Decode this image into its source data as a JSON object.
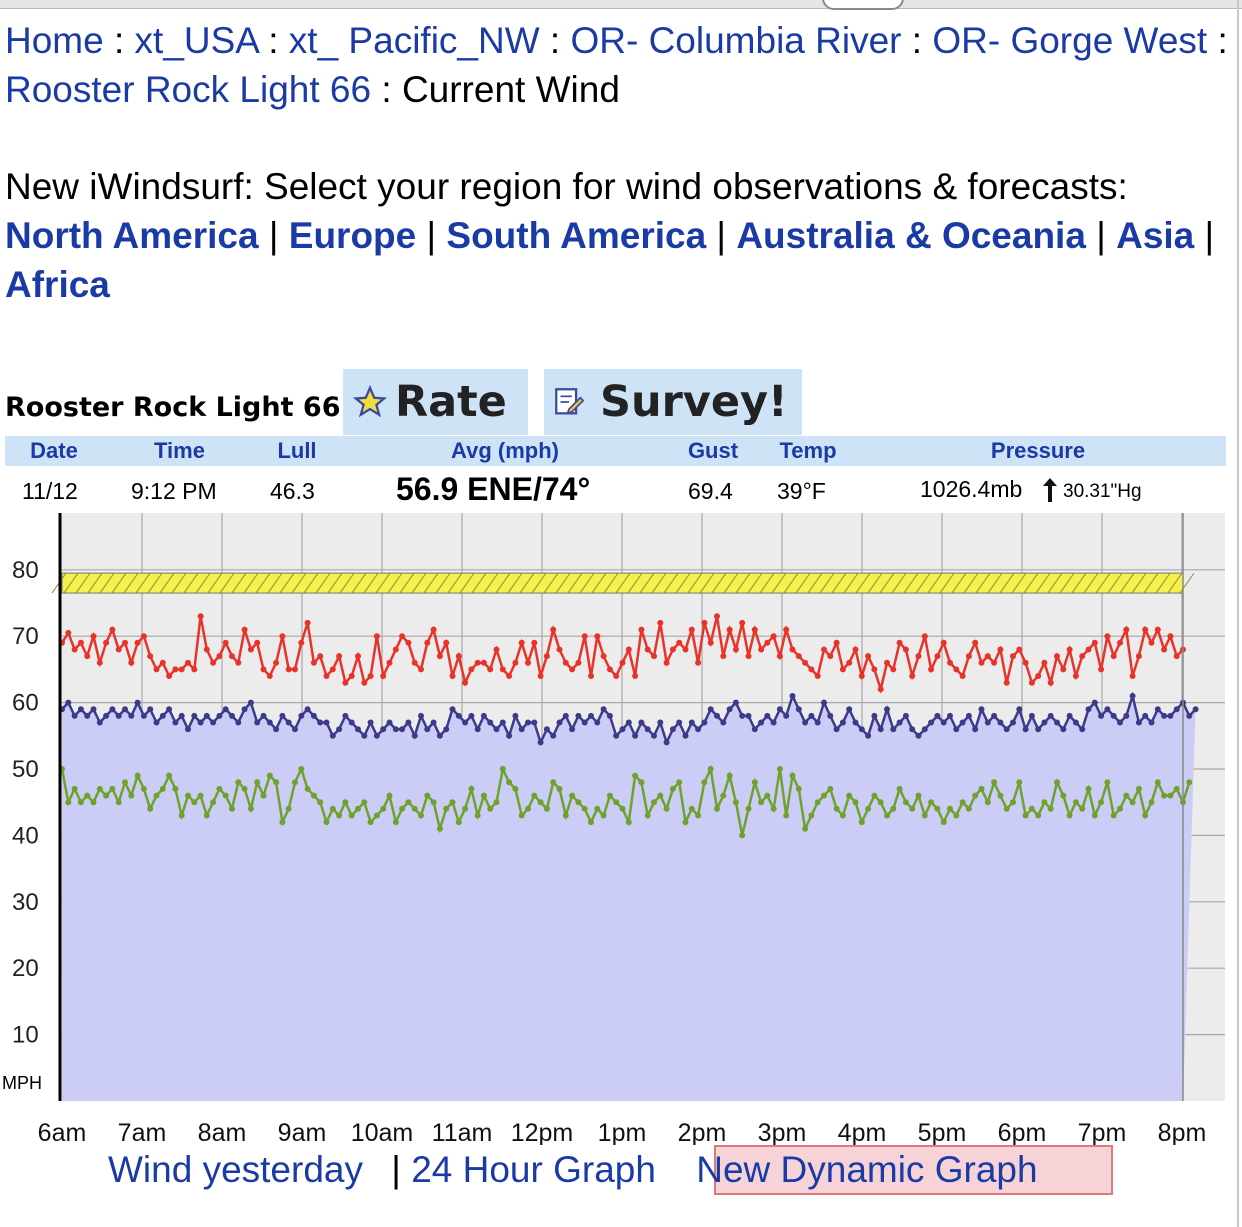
{
  "breadcrumb": {
    "items": [
      "Home",
      "xt_USA",
      "xt_ Pacific_NW",
      "OR- Columbia River",
      "OR- Gorge West",
      "Rooster Rock Light 66"
    ],
    "current": "Current Wind",
    "separator": ":"
  },
  "intro": {
    "text": "New iWindsurf: Select your region for wind observations & forecasts:",
    "regions": [
      "North America",
      "Europe",
      "South America",
      "Australia & Oceania",
      "Asia",
      "Africa"
    ]
  },
  "station": {
    "name": "Rooster Rock Light 66",
    "rate_label": "Rate",
    "survey_label": "Survey!"
  },
  "table": {
    "headers": {
      "date": "Date",
      "time": "Time",
      "lull": "Lull",
      "avg": "Avg (mph)",
      "gust": "Gust",
      "temp": "Temp",
      "pressure": "Pressure"
    },
    "row": {
      "date": "11/12",
      "time": "9:12 PM",
      "lull": "46.3",
      "avg": "56.9 ENE/74°",
      "gust": "69.4",
      "temp": "39°F",
      "pressure_mb": "1026.4mb",
      "pressure_hg": "30.31\"Hg"
    }
  },
  "chart_data": {
    "type": "line",
    "xlabel": "",
    "ylabel": "MPH",
    "x_ticks": [
      "6am",
      "7am",
      "8am",
      "9am",
      "10am",
      "11am",
      "12pm",
      "1pm",
      "2pm",
      "3pm",
      "4pm",
      "5pm",
      "6pm",
      "7pm",
      "8pm"
    ],
    "y_ticks": [
      10,
      20,
      30,
      40,
      50,
      60,
      70,
      80
    ],
    "ylim": [
      0,
      88
    ],
    "x_range_hours": [
      6,
      20
    ],
    "colors": {
      "gust": "#e8332a",
      "avg": "#3b3b8a",
      "lull": "#6fa22c",
      "fill": "#cccdf7",
      "direction_band": "#f5f04a"
    },
    "direction_band": {
      "y_low": 76.5,
      "y_high": 79.5,
      "direction": "ENE"
    },
    "series": [
      {
        "name": "Gust",
        "values": [
          69,
          70.5,
          68,
          69,
          67,
          70,
          66,
          69,
          71,
          68,
          69,
          66,
          69,
          70,
          67,
          65,
          66,
          64,
          65,
          65,
          66,
          65,
          73,
          68,
          66,
          67,
          69,
          67,
          66,
          71,
          68,
          69,
          65,
          64,
          66,
          70,
          65,
          65,
          69,
          72,
          66,
          67,
          64,
          65,
          67,
          63,
          64,
          67,
          63,
          64,
          70,
          64,
          66,
          68,
          70,
          69,
          66,
          65,
          69,
          71,
          67,
          69,
          64,
          67,
          63,
          65,
          66,
          66,
          65,
          68,
          65,
          64,
          66,
          69,
          66,
          69,
          64,
          67,
          71,
          68,
          66,
          65,
          66,
          70,
          64,
          70,
          67,
          65,
          64,
          66,
          68,
          64,
          71,
          68,
          67,
          72,
          66,
          68,
          69,
          68,
          71,
          66,
          72,
          69,
          73,
          67,
          71,
          68,
          72,
          67,
          71,
          68,
          69,
          70,
          67,
          71,
          68,
          67,
          66,
          65,
          64,
          68,
          67,
          69,
          65,
          66,
          68,
          64,
          67,
          65,
          62,
          66,
          65,
          69,
          68,
          64,
          67,
          70,
          65,
          67,
          69,
          66,
          65,
          64,
          67,
          69,
          66,
          67,
          66,
          68,
          63,
          67,
          68,
          66,
          63,
          64,
          66,
          63,
          67,
          65,
          68,
          64,
          67,
          68,
          69,
          65,
          70,
          67,
          69,
          71,
          64,
          67,
          71,
          69,
          71,
          68,
          70,
          67,
          68
        ]
      },
      {
        "name": "Avg",
        "values": [
          59,
          60,
          58,
          59,
          58,
          59,
          57,
          58,
          59,
          58,
          59,
          58,
          60,
          58,
          59,
          57,
          58,
          59,
          57,
          58,
          56,
          58,
          57,
          58,
          57,
          58,
          59,
          58,
          57,
          59,
          60,
          57,
          58,
          57,
          56,
          58,
          57,
          56,
          58,
          59,
          58,
          57,
          57,
          55,
          56,
          58,
          57,
          56,
          55,
          57,
          55,
          56,
          57,
          56,
          56,
          57,
          55,
          58,
          56,
          57,
          55,
          56,
          59,
          58,
          57,
          58,
          56,
          58,
          57,
          56,
          57,
          55,
          58,
          56,
          57,
          57,
          54,
          56,
          55,
          57,
          58,
          56,
          58,
          57,
          58,
          57,
          59,
          58,
          55,
          56,
          57,
          55,
          57,
          56,
          55,
          57,
          54,
          56,
          57,
          55,
          57,
          56,
          57,
          59,
          58,
          57,
          59,
          60,
          58,
          58,
          56,
          57,
          58,
          57,
          59,
          58,
          61,
          59,
          57,
          58,
          57,
          60,
          58,
          56,
          57,
          59,
          57,
          56,
          55,
          58,
          56,
          59,
          56,
          57,
          58,
          56,
          55,
          56,
          57,
          58,
          57,
          58,
          56,
          57,
          58,
          56,
          59,
          57,
          58,
          57,
          56,
          57,
          59,
          56,
          58,
          56,
          57,
          58,
          57,
          56,
          58,
          57,
          56,
          59,
          60,
          58,
          59,
          58,
          57,
          58,
          61,
          57,
          58,
          57,
          59,
          58,
          58,
          59,
          60,
          58,
          59
        ]
      },
      {
        "name": "Lull",
        "values": [
          50,
          45,
          47,
          45,
          46,
          45,
          47,
          46,
          47,
          45,
          48,
          46,
          49,
          47,
          44,
          46,
          47,
          49,
          47,
          43,
          46,
          45,
          46,
          43,
          45,
          47,
          46,
          44,
          48,
          47,
          44,
          48,
          46,
          49,
          48,
          42,
          44,
          48,
          50,
          47,
          46,
          45,
          42,
          44,
          43,
          45,
          43,
          44,
          45,
          42,
          43,
          44,
          46,
          42,
          44,
          45,
          44,
          43,
          46,
          45,
          41,
          44,
          45,
          42,
          44,
          47,
          43,
          46,
          44,
          45,
          50,
          48,
          47,
          43,
          44,
          46,
          45,
          44,
          48,
          47,
          43,
          46,
          45,
          44,
          42,
          44,
          43,
          46,
          45,
          44,
          42,
          49,
          48,
          43,
          45,
          46,
          44,
          47,
          48,
          42,
          44,
          43,
          48,
          50,
          44,
          46,
          49,
          45,
          40,
          44,
          48,
          45,
          46,
          44,
          50,
          43,
          49,
          47,
          41,
          43,
          45,
          46,
          47,
          44,
          43,
          46,
          45,
          42,
          44,
          46,
          45,
          43,
          44,
          47,
          45,
          44,
          46,
          43,
          45,
          44,
          42,
          44,
          43,
          45,
          44,
          46,
          47,
          45,
          48,
          46,
          44,
          45,
          48,
          43,
          44,
          43,
          45,
          44,
          48,
          46,
          43,
          45,
          44,
          47,
          43,
          45,
          48,
          43,
          44,
          46,
          45,
          47,
          43,
          45,
          48,
          46,
          46,
          47,
          45,
          48
        ]
      }
    ]
  },
  "footer": {
    "wind_yesterday": "Wind yesterday",
    "separator": "|",
    "graph_24h": "24 Hour Graph",
    "dynamic_graph": "New Dynamic Graph"
  }
}
